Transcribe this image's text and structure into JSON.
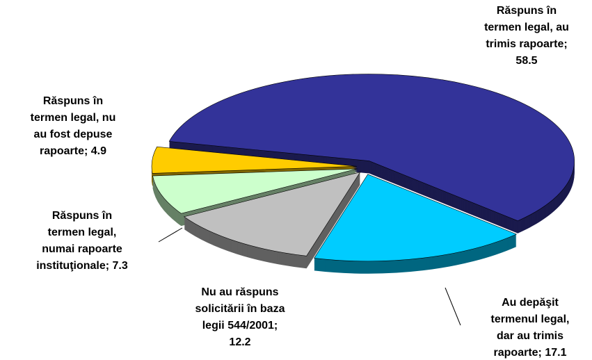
{
  "chart_data": {
    "type": "pie",
    "categories": [
      "Răspuns în termen legal, au trimis rapoarte;",
      "Au depăşit termenul legal, dar au trimis rapoarte;",
      "Nu au răspuns solicitării în baza legii 544/2001;",
      "Răspuns în termen legal, numai rapoarte instituţionale;",
      "Răspuns în termen legal, nu au fost depuse rapoarte;"
    ],
    "values": [
      58.5,
      17.1,
      12.2,
      7.3,
      4.9
    ],
    "colors": [
      "#333399",
      "#00ccff",
      "#c0c0c0",
      "#ccffcc",
      "#ffcc00"
    ]
  }
}
